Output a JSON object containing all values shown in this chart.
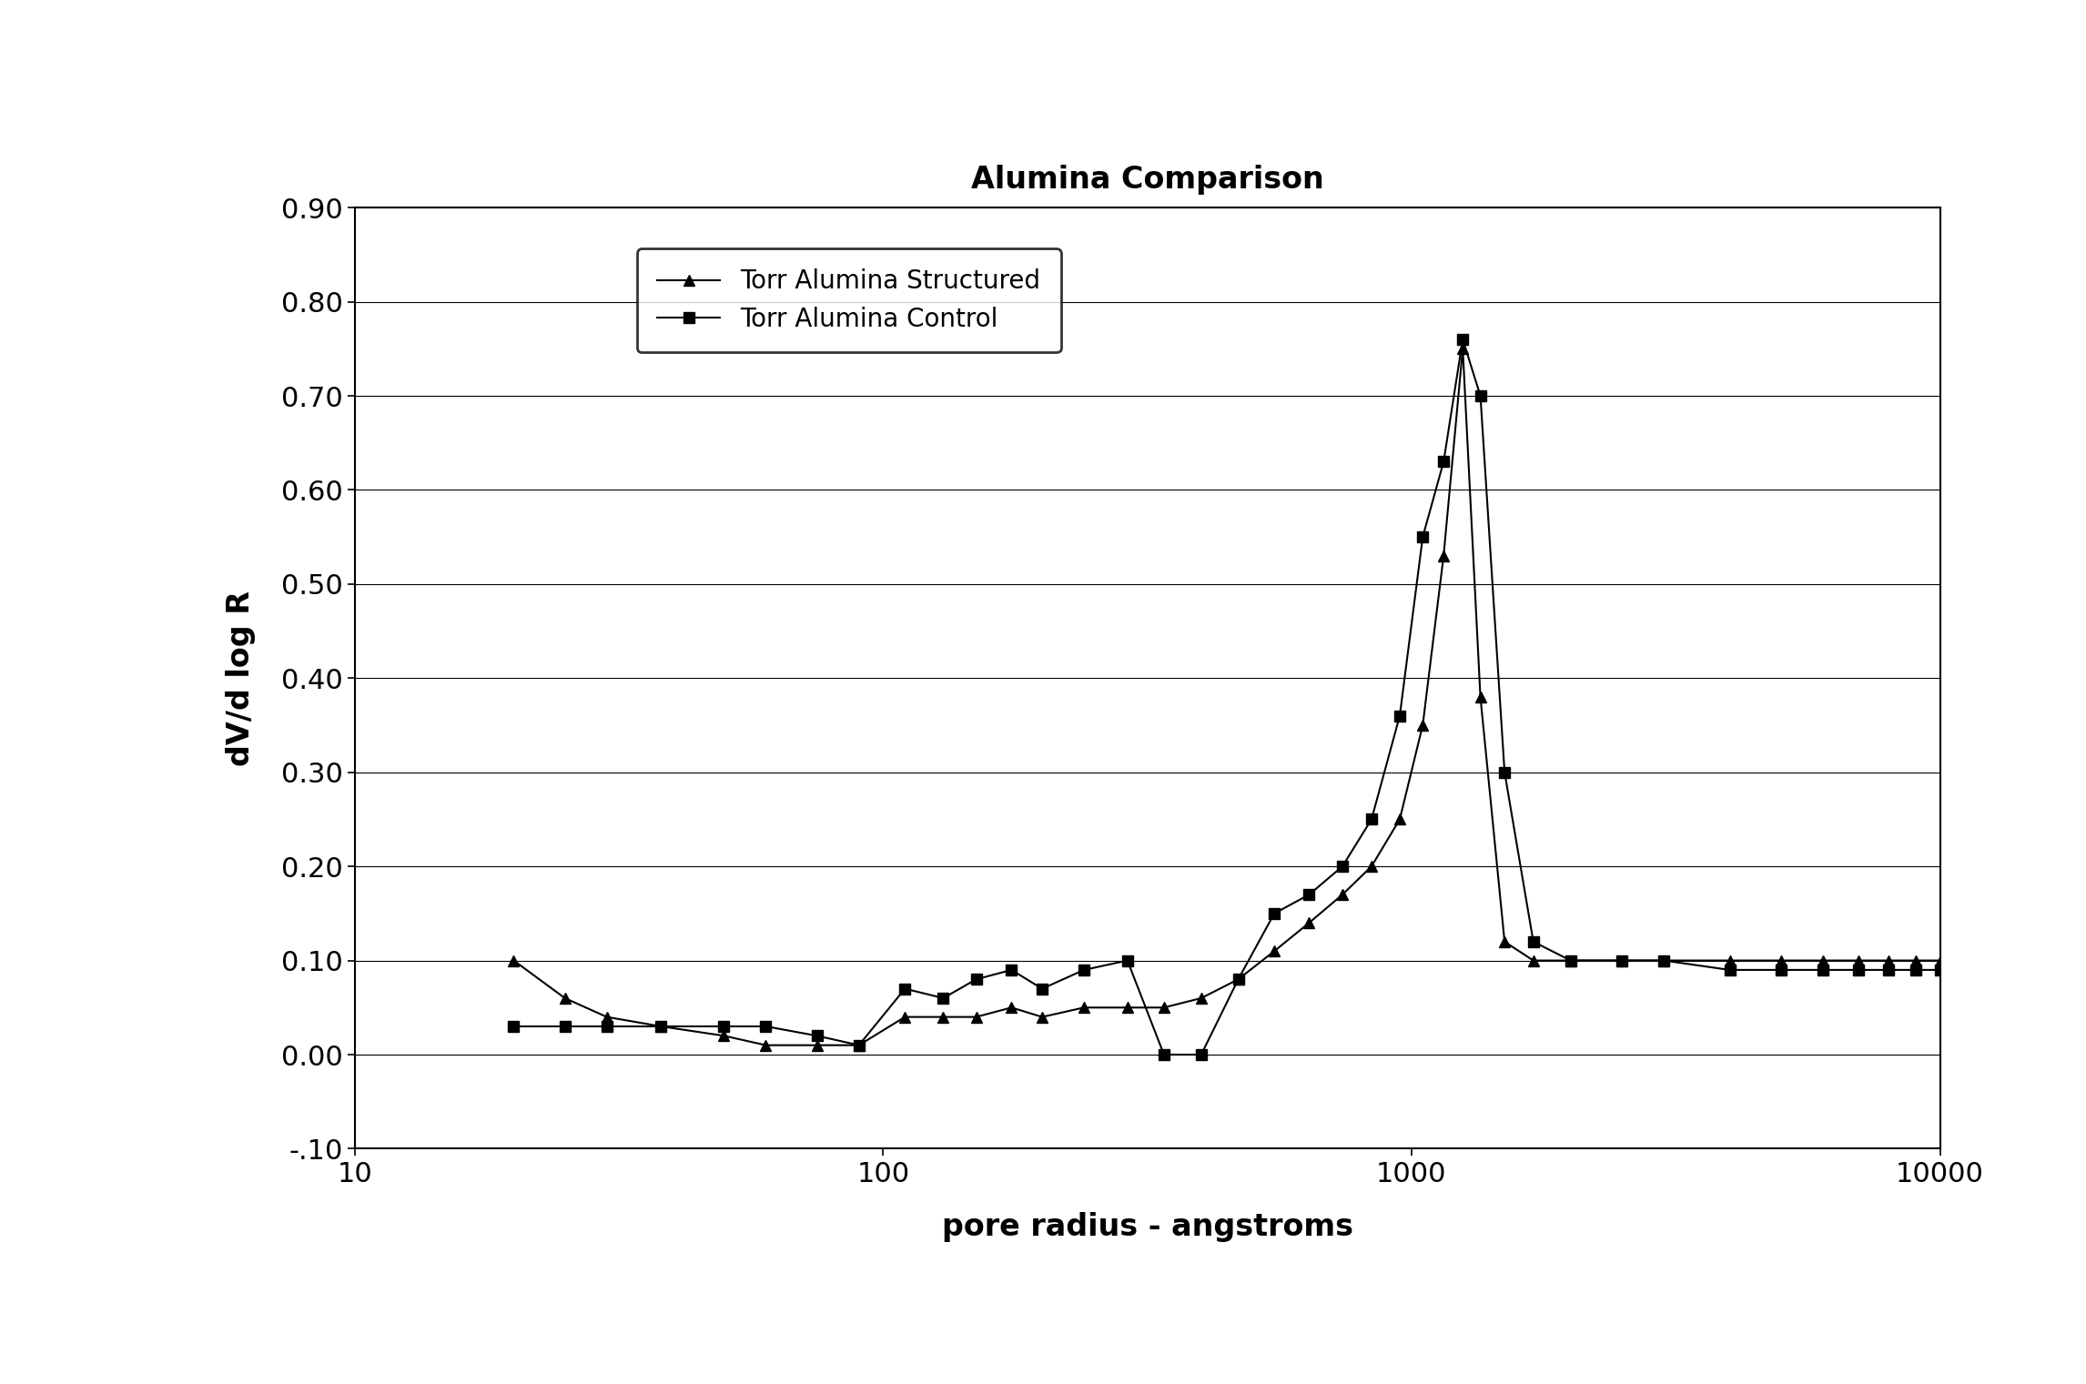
{
  "title": "Alumina Comparison",
  "xlabel": "pore radius - angstroms",
  "ylabel": "dV/d log R",
  "xlim": [
    10,
    10000
  ],
  "ylim": [
    -0.1,
    0.9
  ],
  "yticks": [
    -0.1,
    0.0,
    0.1,
    0.2,
    0.3,
    0.4,
    0.5,
    0.6,
    0.7,
    0.8,
    0.9
  ],
  "ytick_labels": [
    "-.10",
    "0.00",
    "0.10",
    "0.20",
    "0.30",
    "0.40",
    "0.50",
    "0.60",
    "0.70",
    "0.80",
    "0.90"
  ],
  "structured_x": [
    20,
    25,
    30,
    38,
    50,
    60,
    75,
    90,
    110,
    130,
    150,
    175,
    200,
    240,
    290,
    340,
    400,
    470,
    550,
    640,
    740,
    840,
    950,
    1050,
    1150,
    1250,
    1350,
    1500,
    1700,
    2000,
    2500,
    3000,
    4000,
    5000,
    6000,
    7000,
    8000,
    9000,
    10000
  ],
  "structured_y": [
    0.1,
    0.06,
    0.04,
    0.03,
    0.02,
    0.01,
    0.01,
    0.01,
    0.04,
    0.04,
    0.04,
    0.05,
    0.04,
    0.05,
    0.05,
    0.05,
    0.06,
    0.08,
    0.11,
    0.14,
    0.17,
    0.2,
    0.25,
    0.35,
    0.53,
    0.75,
    0.38,
    0.12,
    0.1,
    0.1,
    0.1,
    0.1,
    0.1,
    0.1,
    0.1,
    0.1,
    0.1,
    0.1,
    0.1
  ],
  "control_x": [
    20,
    25,
    30,
    38,
    50,
    60,
    75,
    90,
    110,
    130,
    150,
    175,
    200,
    240,
    290,
    340,
    400,
    470,
    550,
    640,
    740,
    840,
    950,
    1050,
    1150,
    1250,
    1350,
    1500,
    1700,
    2000,
    2500,
    3000,
    4000,
    5000,
    6000,
    7000,
    8000,
    9000,
    10000
  ],
  "control_y": [
    0.03,
    0.03,
    0.03,
    0.03,
    0.03,
    0.03,
    0.02,
    0.01,
    0.07,
    0.06,
    0.08,
    0.09,
    0.07,
    0.09,
    0.1,
    0.0,
    0.0,
    0.08,
    0.15,
    0.17,
    0.2,
    0.25,
    0.36,
    0.55,
    0.63,
    0.76,
    0.7,
    0.3,
    0.12,
    0.1,
    0.1,
    0.1,
    0.09,
    0.09,
    0.09,
    0.09,
    0.09,
    0.09,
    0.09
  ],
  "line_color": "#000000",
  "background_color": "#ffffff",
  "legend_labels": [
    "Torr Alumina Structured",
    "Torr Alumina Control"
  ]
}
